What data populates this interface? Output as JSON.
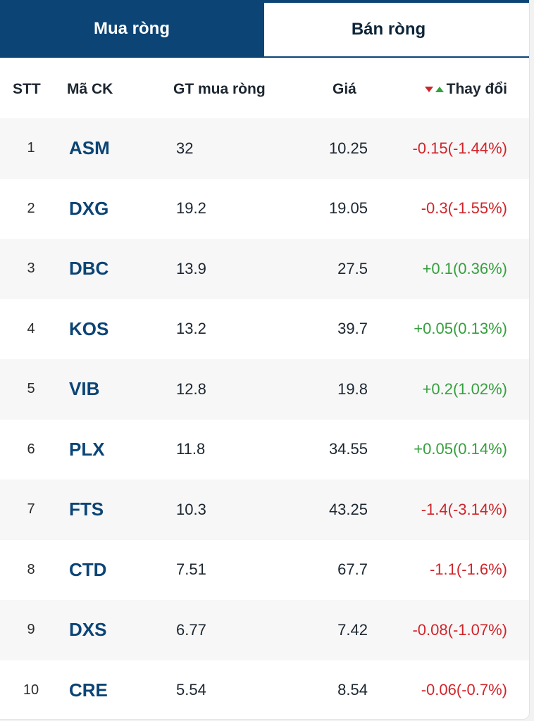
{
  "tabs": {
    "buy_label": "Mua ròng",
    "sell_label": "Bán ròng",
    "active": "buy"
  },
  "columns": {
    "stt": "STT",
    "code": "Mã CK",
    "gt": "GT mua ròng",
    "price": "Giá",
    "change": "Thay đổi",
    "change_icons": [
      "triangle-down-icon",
      "triangle-up-icon"
    ]
  },
  "colors": {
    "brand": "#0b4475",
    "negative": "#d1242a",
    "positive": "#35a03e"
  },
  "rows": [
    {
      "stt": "1",
      "code": "ASM",
      "gt": "32",
      "price": "10.25",
      "change": "-0.15(-1.44%)",
      "trend": "neg"
    },
    {
      "stt": "2",
      "code": "DXG",
      "gt": "19.2",
      "price": "19.05",
      "change": "-0.3(-1.55%)",
      "trend": "neg"
    },
    {
      "stt": "3",
      "code": "DBC",
      "gt": "13.9",
      "price": "27.5",
      "change": "+0.1(0.36%)",
      "trend": "pos"
    },
    {
      "stt": "4",
      "code": "KOS",
      "gt": "13.2",
      "price": "39.7",
      "change": "+0.05(0.13%)",
      "trend": "pos"
    },
    {
      "stt": "5",
      "code": "VIB",
      "gt": "12.8",
      "price": "19.8",
      "change": "+0.2(1.02%)",
      "trend": "pos"
    },
    {
      "stt": "6",
      "code": "PLX",
      "gt": "11.8",
      "price": "34.55",
      "change": "+0.05(0.14%)",
      "trend": "pos"
    },
    {
      "stt": "7",
      "code": "FTS",
      "gt": "10.3",
      "price": "43.25",
      "change": "-1.4(-3.14%)",
      "trend": "neg"
    },
    {
      "stt": "8",
      "code": "CTD",
      "gt": "7.51",
      "price": "67.7",
      "change": "-1.1(-1.6%)",
      "trend": "neg"
    },
    {
      "stt": "9",
      "code": "DXS",
      "gt": "6.77",
      "price": "7.42",
      "change": "-0.08(-1.07%)",
      "trend": "neg"
    },
    {
      "stt": "10",
      "code": "CRE",
      "gt": "5.54",
      "price": "8.54",
      "change": "-0.06(-0.7%)",
      "trend": "neg"
    }
  ]
}
